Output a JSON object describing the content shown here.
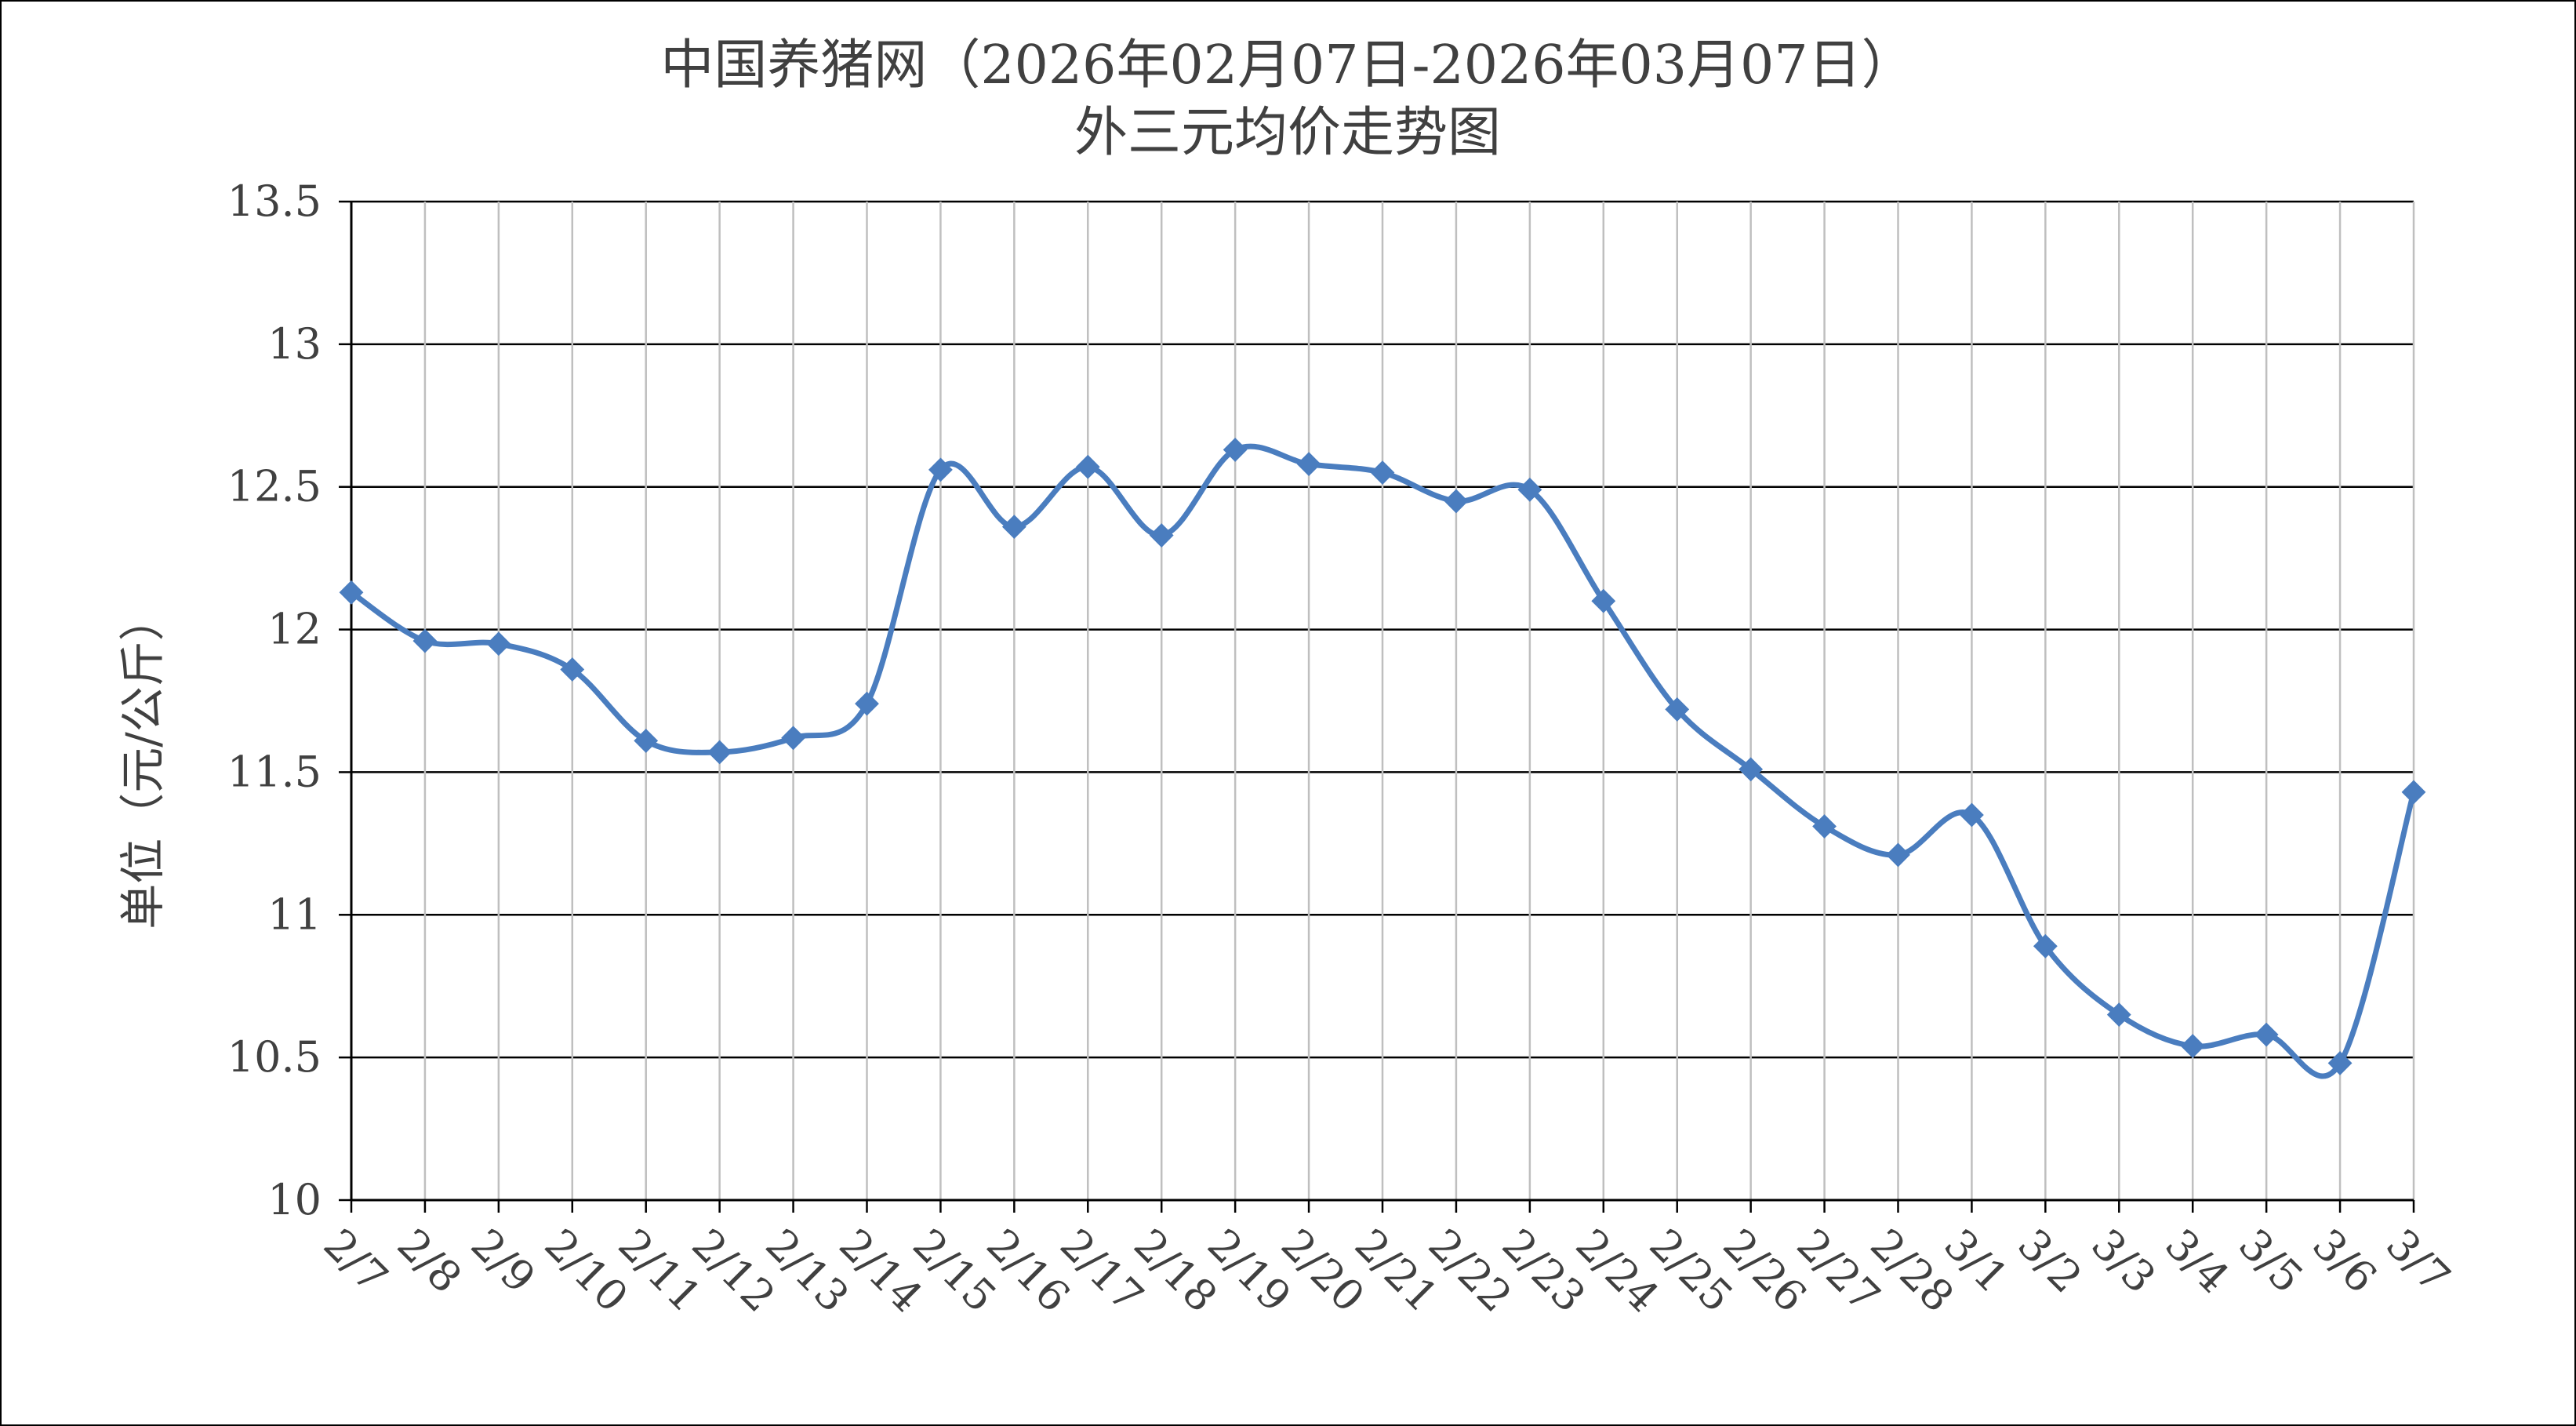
{
  "chart_data": {
    "type": "line",
    "title": [
      "中国养猪网（2026年02月07日-2026年03月07日）",
      "外三元均价走势图"
    ],
    "xlabel": "",
    "ylabel": "单位（元/公斤）",
    "ylim": [
      10,
      13.5
    ],
    "yticks": [
      "10",
      "10.5",
      "11",
      "11.5",
      "12",
      "12.5",
      "13",
      "13.5"
    ],
    "grid": true,
    "legend": "none",
    "categories": [
      "2/7",
      "2/8",
      "2/9",
      "2/10",
      "2/11",
      "2/12",
      "2/13",
      "2/14",
      "2/15",
      "2/16",
      "2/17",
      "2/18",
      "2/19",
      "2/20",
      "2/21",
      "2/22",
      "2/23",
      "2/24",
      "2/25",
      "2/26",
      "2/27",
      "2/28",
      "3/1",
      "3/2",
      "3/3",
      "3/4",
      "3/5",
      "3/6",
      "3/7"
    ],
    "series": [
      {
        "color": "#4a7dbf",
        "marker": "diamond",
        "values": [
          12.13,
          11.96,
          11.95,
          11.86,
          11.61,
          11.57,
          11.62,
          11.74,
          12.56,
          12.36,
          12.57,
          12.33,
          12.63,
          12.58,
          12.55,
          12.45,
          12.49,
          12.1,
          11.72,
          11.51,
          11.31,
          11.21,
          11.35,
          10.89,
          10.65,
          10.54,
          10.58,
          10.48,
          11.43
        ]
      }
    ]
  }
}
